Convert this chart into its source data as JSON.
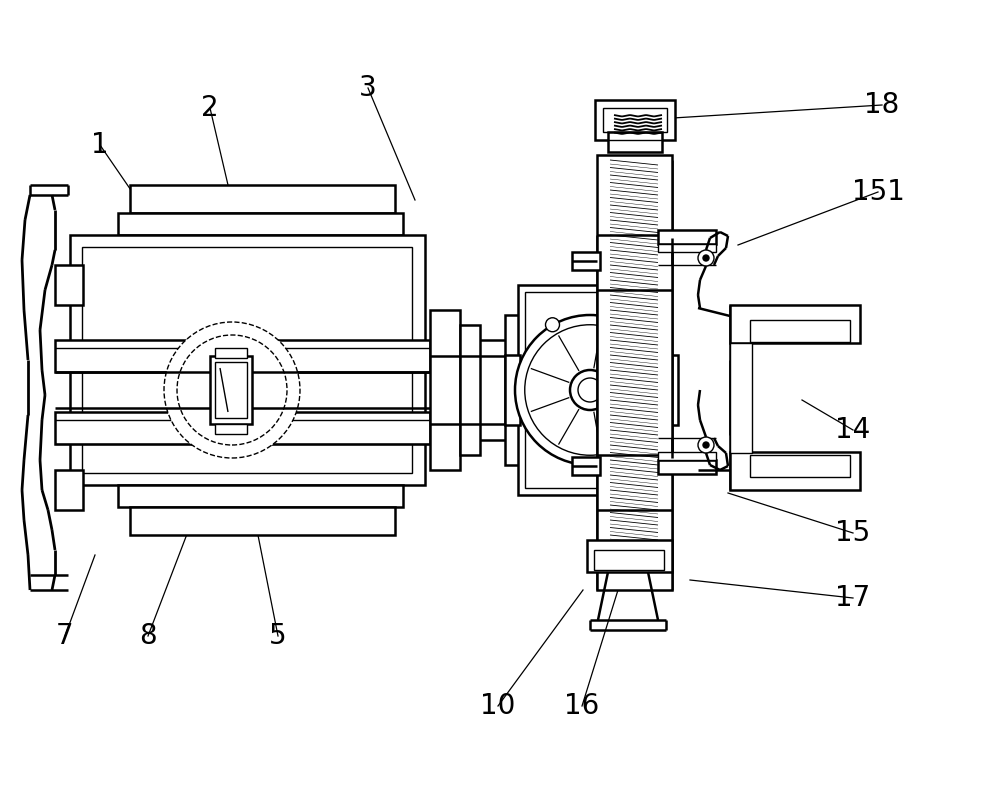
{
  "bg_color": "#ffffff",
  "lc": "#000000",
  "lw": 1.8,
  "tlw": 1.0,
  "fs": 20,
  "figsize": [
    10.0,
    7.86
  ],
  "dpi": 100,
  "annotations": [
    [
      "1",
      100,
      145,
      148,
      215
    ],
    [
      "2",
      210,
      108,
      228,
      185
    ],
    [
      "3",
      368,
      88,
      415,
      200
    ],
    [
      "5",
      278,
      636,
      252,
      505
    ],
    [
      "7",
      65,
      636,
      95,
      555
    ],
    [
      "8",
      148,
      636,
      205,
      487
    ],
    [
      "10",
      498,
      706,
      583,
      590
    ],
    [
      "14",
      853,
      430,
      802,
      400
    ],
    [
      "15",
      853,
      533,
      728,
      493
    ],
    [
      "16",
      582,
      706,
      618,
      590
    ],
    [
      "17",
      853,
      598,
      690,
      580
    ],
    [
      "18",
      882,
      105,
      673,
      118
    ],
    [
      "151",
      878,
      192,
      738,
      245
    ]
  ]
}
